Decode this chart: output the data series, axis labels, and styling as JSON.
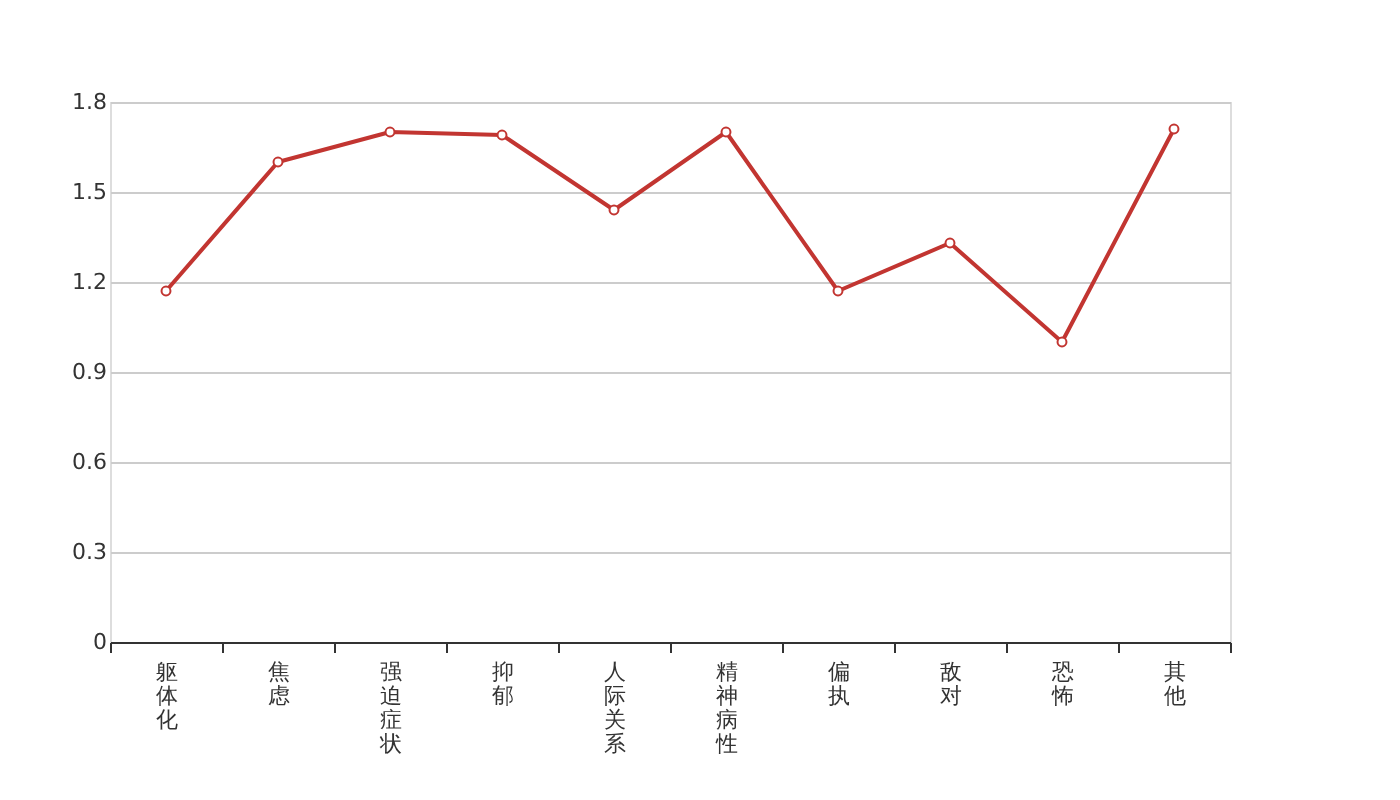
{
  "chart_data": {
    "type": "line",
    "categories": [
      "躯体化",
      "焦虑",
      "强迫症状",
      "抑郁",
      "人际关系",
      "精神病性",
      "偏执",
      "敌对",
      "恐怖",
      "其他"
    ],
    "series": [
      {
        "color": "#c23531",
        "values": [
          1.17,
          1.6,
          1.7,
          1.69,
          1.44,
          1.7,
          1.17,
          1.33,
          1.0,
          1.71
        ]
      }
    ],
    "ylim": [
      0,
      1.8
    ],
    "yticks": [
      0,
      0.3,
      0.6,
      0.9,
      1.2,
      1.5,
      1.8
    ],
    "grid": "y",
    "marker": "circle",
    "line_style": "solid",
    "legend": false
  }
}
